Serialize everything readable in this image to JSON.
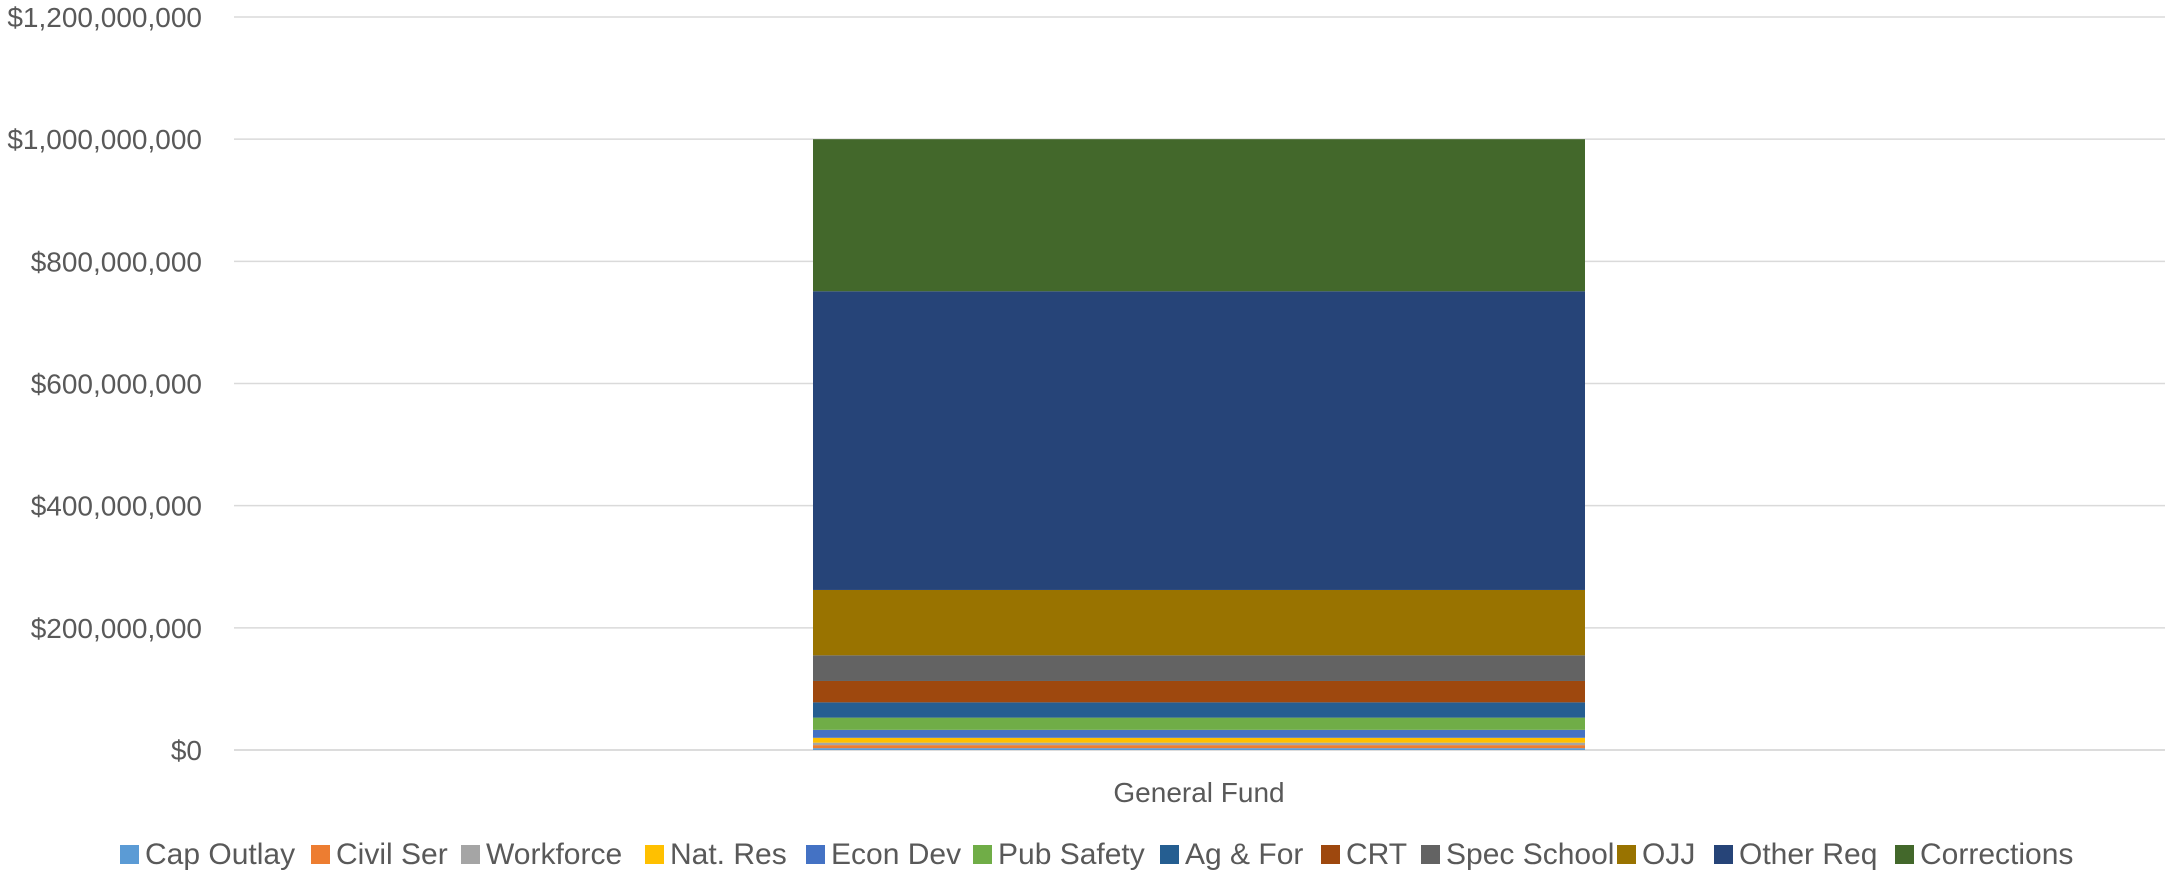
{
  "chart_data": {
    "type": "bar",
    "stacked": true,
    "categories": [
      "General Fund"
    ],
    "ylim": [
      0,
      1200000000
    ],
    "yticks": [
      {
        "value": 0,
        "label": "$0"
      },
      {
        "value": 200000000,
        "label": "$200,000,000"
      },
      {
        "value": 400000000,
        "label": "$400,000,000"
      },
      {
        "value": 600000000,
        "label": "$600,000,000"
      },
      {
        "value": 800000000,
        "label": "$800,000,000"
      },
      {
        "value": 1000000000,
        "label": "$1,000,000,000"
      },
      {
        "value": 1200000000,
        "label": "$1,200,000,000"
      }
    ],
    "grid": true,
    "legend_position": "bottom",
    "series": [
      {
        "name": "Cap Outlay",
        "color": "#5B9BD5",
        "values": [
          3000000
        ]
      },
      {
        "name": "Civil Ser",
        "color": "#ED7D31",
        "values": [
          5000000
        ]
      },
      {
        "name": "Workforce",
        "color": "#A5A5A5",
        "values": [
          4000000
        ]
      },
      {
        "name": "Nat. Res",
        "color": "#FFC000",
        "values": [
          8000000
        ]
      },
      {
        "name": "Econ Dev",
        "color": "#4472C4",
        "values": [
          13000000
        ]
      },
      {
        "name": "Pub Safety",
        "color": "#70AD47",
        "values": [
          20000000
        ]
      },
      {
        "name": "Ag & For",
        "color": "#255E91",
        "values": [
          25000000
        ]
      },
      {
        "name": "CRT",
        "color": "#9E480E",
        "values": [
          35000000
        ]
      },
      {
        "name": "Spec School",
        "color": "#636363",
        "values": [
          42000000
        ]
      },
      {
        "name": "OJJ",
        "color": "#997300",
        "values": [
          107000000
        ]
      },
      {
        "name": "Other Req",
        "color": "#264478",
        "values": [
          489000000
        ]
      },
      {
        "name": "Corrections",
        "color": "#43682B",
        "values": [
          249000000
        ]
      }
    ]
  }
}
